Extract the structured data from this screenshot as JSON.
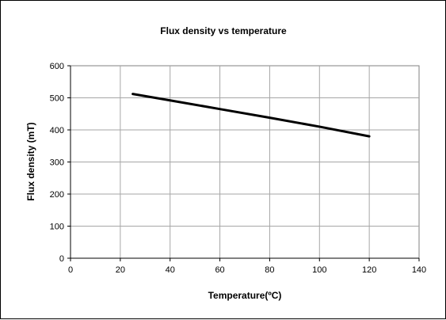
{
  "chart_data": {
    "type": "line",
    "title": "Flux density  vs temperature",
    "xlabel": "Temperature(ºC)",
    "ylabel": "Flux density (mT)",
    "xlim": [
      0,
      140
    ],
    "ylim": [
      0,
      600
    ],
    "xticks": [
      0,
      20,
      40,
      60,
      80,
      100,
      120,
      140
    ],
    "yticks": [
      0,
      100,
      200,
      300,
      400,
      500,
      600
    ],
    "grid": true,
    "legend": "none",
    "series": [
      {
        "x": [
          25,
          40,
          60,
          80,
          100,
          120
        ],
        "y": [
          512,
          492,
          465,
          438,
          410,
          380
        ],
        "color": "#000000"
      }
    ]
  }
}
